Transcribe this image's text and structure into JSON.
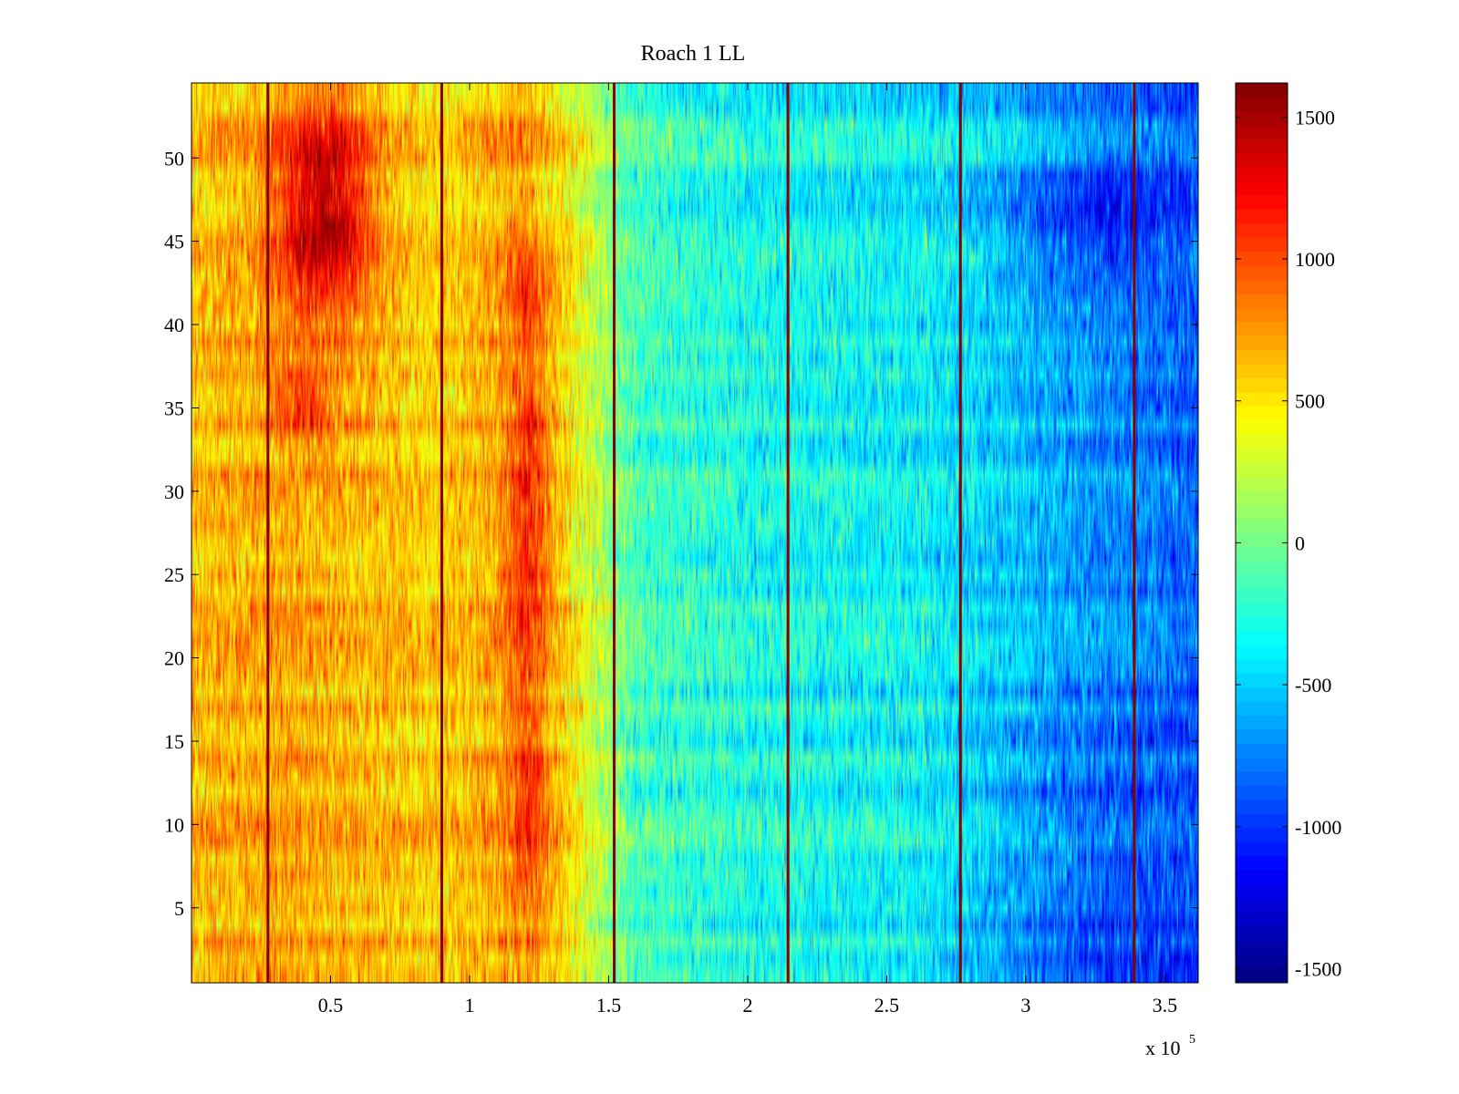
{
  "chart_data": {
    "type": "heatmap",
    "title": "Roach 1 LL",
    "xlabel": "",
    "ylabel": "",
    "x_range": [
      0,
      362000
    ],
    "y_range": [
      0.5,
      54.5
    ],
    "x_ticks": [
      {
        "value": 50000,
        "label": "0.5"
      },
      {
        "value": 100000,
        "label": "1"
      },
      {
        "value": 150000,
        "label": "1.5"
      },
      {
        "value": 200000,
        "label": "2"
      },
      {
        "value": 250000,
        "label": "2.5"
      },
      {
        "value": 300000,
        "label": "3"
      },
      {
        "value": 350000,
        "label": "3.5"
      }
    ],
    "x_multiplier": {
      "base": "x 10",
      "exponent": "5"
    },
    "y_ticks": [
      {
        "value": 5,
        "label": "5"
      },
      {
        "value": 10,
        "label": "10"
      },
      {
        "value": 15,
        "label": "15"
      },
      {
        "value": 20,
        "label": "20"
      },
      {
        "value": 25,
        "label": "25"
      },
      {
        "value": 30,
        "label": "30"
      },
      {
        "value": 35,
        "label": "35"
      },
      {
        "value": 40,
        "label": "40"
      },
      {
        "value": 45,
        "label": "45"
      },
      {
        "value": 50,
        "label": "50"
      }
    ],
    "colormap": "jet",
    "color_range": [
      -1550,
      1620
    ],
    "colorbar_ticks": [
      {
        "value": 1500,
        "label": "1500"
      },
      {
        "value": 1000,
        "label": "1000"
      },
      {
        "value": 500,
        "label": "500"
      },
      {
        "value": 0,
        "label": "0"
      },
      {
        "value": -500,
        "label": "-500"
      },
      {
        "value": -1000,
        "label": "-1000"
      },
      {
        "value": -1500,
        "label": "-1500"
      }
    ],
    "rows": 54,
    "vertical_lines_x": [
      27500,
      90000,
      152000,
      214500,
      276500,
      339000
    ],
    "vertical_line_value": 1600,
    "trend": [
      {
        "x": 0,
        "value": 620
      },
      {
        "x": 30000,
        "value": 700
      },
      {
        "x": 60000,
        "value": 640
      },
      {
        "x": 90000,
        "value": 560
      },
      {
        "x": 120000,
        "value": 760
      },
      {
        "x": 140000,
        "value": 380
      },
      {
        "x": 160000,
        "value": -150
      },
      {
        "x": 200000,
        "value": -300
      },
      {
        "x": 250000,
        "value": -350
      },
      {
        "x": 280000,
        "value": -450
      },
      {
        "x": 320000,
        "value": -650
      },
      {
        "x": 362000,
        "value": -850
      }
    ],
    "hotspots": [
      {
        "x": 48000,
        "y": 47,
        "sx": 12000,
        "sy": 4.5,
        "value": 850
      },
      {
        "x": 40000,
        "y": 35,
        "sx": 8000,
        "sy": 1.5,
        "value": 450
      },
      {
        "x": 122000,
        "y": 42,
        "sx": 6000,
        "sy": 2,
        "value": 350
      },
      {
        "x": 122000,
        "y": 33,
        "sx": 6000,
        "sy": 3,
        "value": 400
      },
      {
        "x": 122000,
        "y": 25,
        "sx": 6000,
        "sy": 3,
        "value": 400
      },
      {
        "x": 122000,
        "y": 12,
        "sx": 6000,
        "sy": 5,
        "value": 350
      },
      {
        "x": 325000,
        "y": 46,
        "sx": 20000,
        "sy": 3,
        "value": -350
      },
      {
        "x": 325000,
        "y": 2,
        "sx": 30000,
        "sy": 1.5,
        "value": -300
      },
      {
        "x": 325000,
        "y": 10,
        "sx": 25000,
        "sy": 5,
        "value": -200
      }
    ],
    "grid": false
  }
}
